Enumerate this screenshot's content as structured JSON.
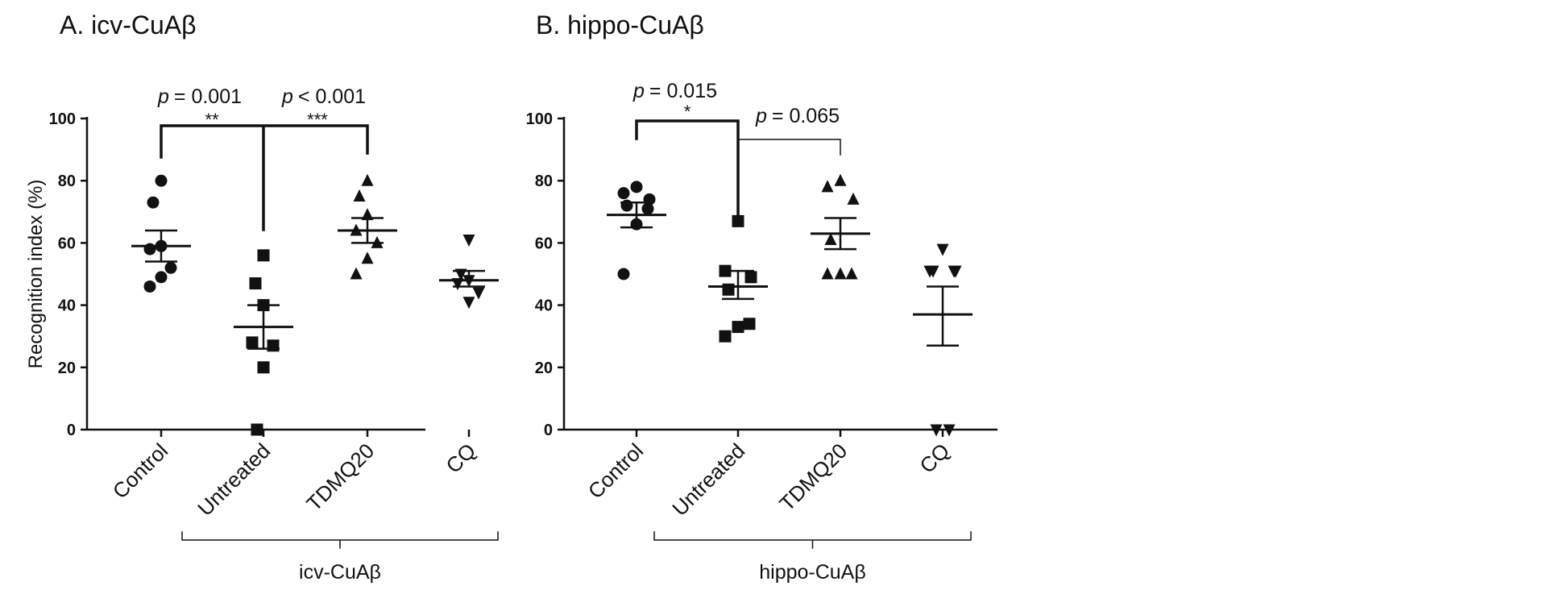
{
  "chart_data": [
    {
      "type": "scatter",
      "title": "A. icv-CuAβ",
      "ylabel": "Recognition index (%)",
      "ylim": [
        0,
        100
      ],
      "yticks": [
        "0",
        "20",
        "40",
        "60",
        "80",
        "100"
      ],
      "categories": [
        "Control",
        "Untreated",
        "TDMQ20",
        "CQ"
      ],
      "group_label": "icv-CuAβ",
      "series": [
        {
          "category": "Control",
          "marker": "circle",
          "points": [
            80,
            73,
            59,
            58,
            52,
            49,
            46
          ],
          "mean": 59,
          "sem_low": 54,
          "sem_high": 64
        },
        {
          "category": "Untreated",
          "marker": "square",
          "points": [
            56,
            47,
            40,
            28,
            27,
            20,
            0
          ],
          "mean": 33,
          "sem_low": 26,
          "sem_high": 40
        },
        {
          "category": "TDMQ20",
          "marker": "triangle-up",
          "points": [
            80,
            75,
            69,
            64,
            60,
            55,
            50
          ],
          "mean": 64,
          "sem_low": 60,
          "sem_high": 68
        },
        {
          "category": "CQ",
          "marker": "triangle-down",
          "points": [
            61,
            50,
            48,
            47,
            44,
            41
          ],
          "mean": 48,
          "sem_low": 46,
          "sem_high": 51
        }
      ],
      "comparisons": [
        {
          "p": "= 0.001",
          "stars": "**"
        },
        {
          "p": "< 0.001",
          "stars": "***"
        }
      ]
    },
    {
      "type": "scatter",
      "title": "B. hippo-CuAβ",
      "ylabel": "",
      "ylim": [
        0,
        100
      ],
      "yticks": [
        "0",
        "20",
        "40",
        "60",
        "80",
        "100"
      ],
      "categories": [
        "Control",
        "Untreated",
        "TDMQ20",
        "CQ"
      ],
      "group_label": "hippo-CuAβ",
      "series": [
        {
          "category": "Control",
          "marker": "circle",
          "points": [
            78,
            76,
            74,
            72,
            71,
            66,
            50
          ],
          "mean": 69,
          "sem_low": 65,
          "sem_high": 73
        },
        {
          "category": "Untreated",
          "marker": "square",
          "points": [
            67,
            51,
            49,
            45,
            34,
            33,
            30
          ],
          "mean": 46,
          "sem_low": 42,
          "sem_high": 51
        },
        {
          "category": "TDMQ20",
          "marker": "triangle-up",
          "points": [
            80,
            78,
            74,
            61,
            50,
            50,
            50
          ],
          "mean": 63,
          "sem_low": 58,
          "sem_high": 68
        },
        {
          "category": "CQ",
          "marker": "triangle-down",
          "points": [
            58,
            51,
            51,
            51,
            51,
            0,
            0
          ],
          "mean": 37,
          "sem_low": 27,
          "sem_high": 46
        }
      ],
      "comparisons": [
        {
          "p": "= 0.015",
          "stars": "*"
        },
        {
          "p": "= 0.065",
          "stars": ""
        }
      ]
    }
  ]
}
